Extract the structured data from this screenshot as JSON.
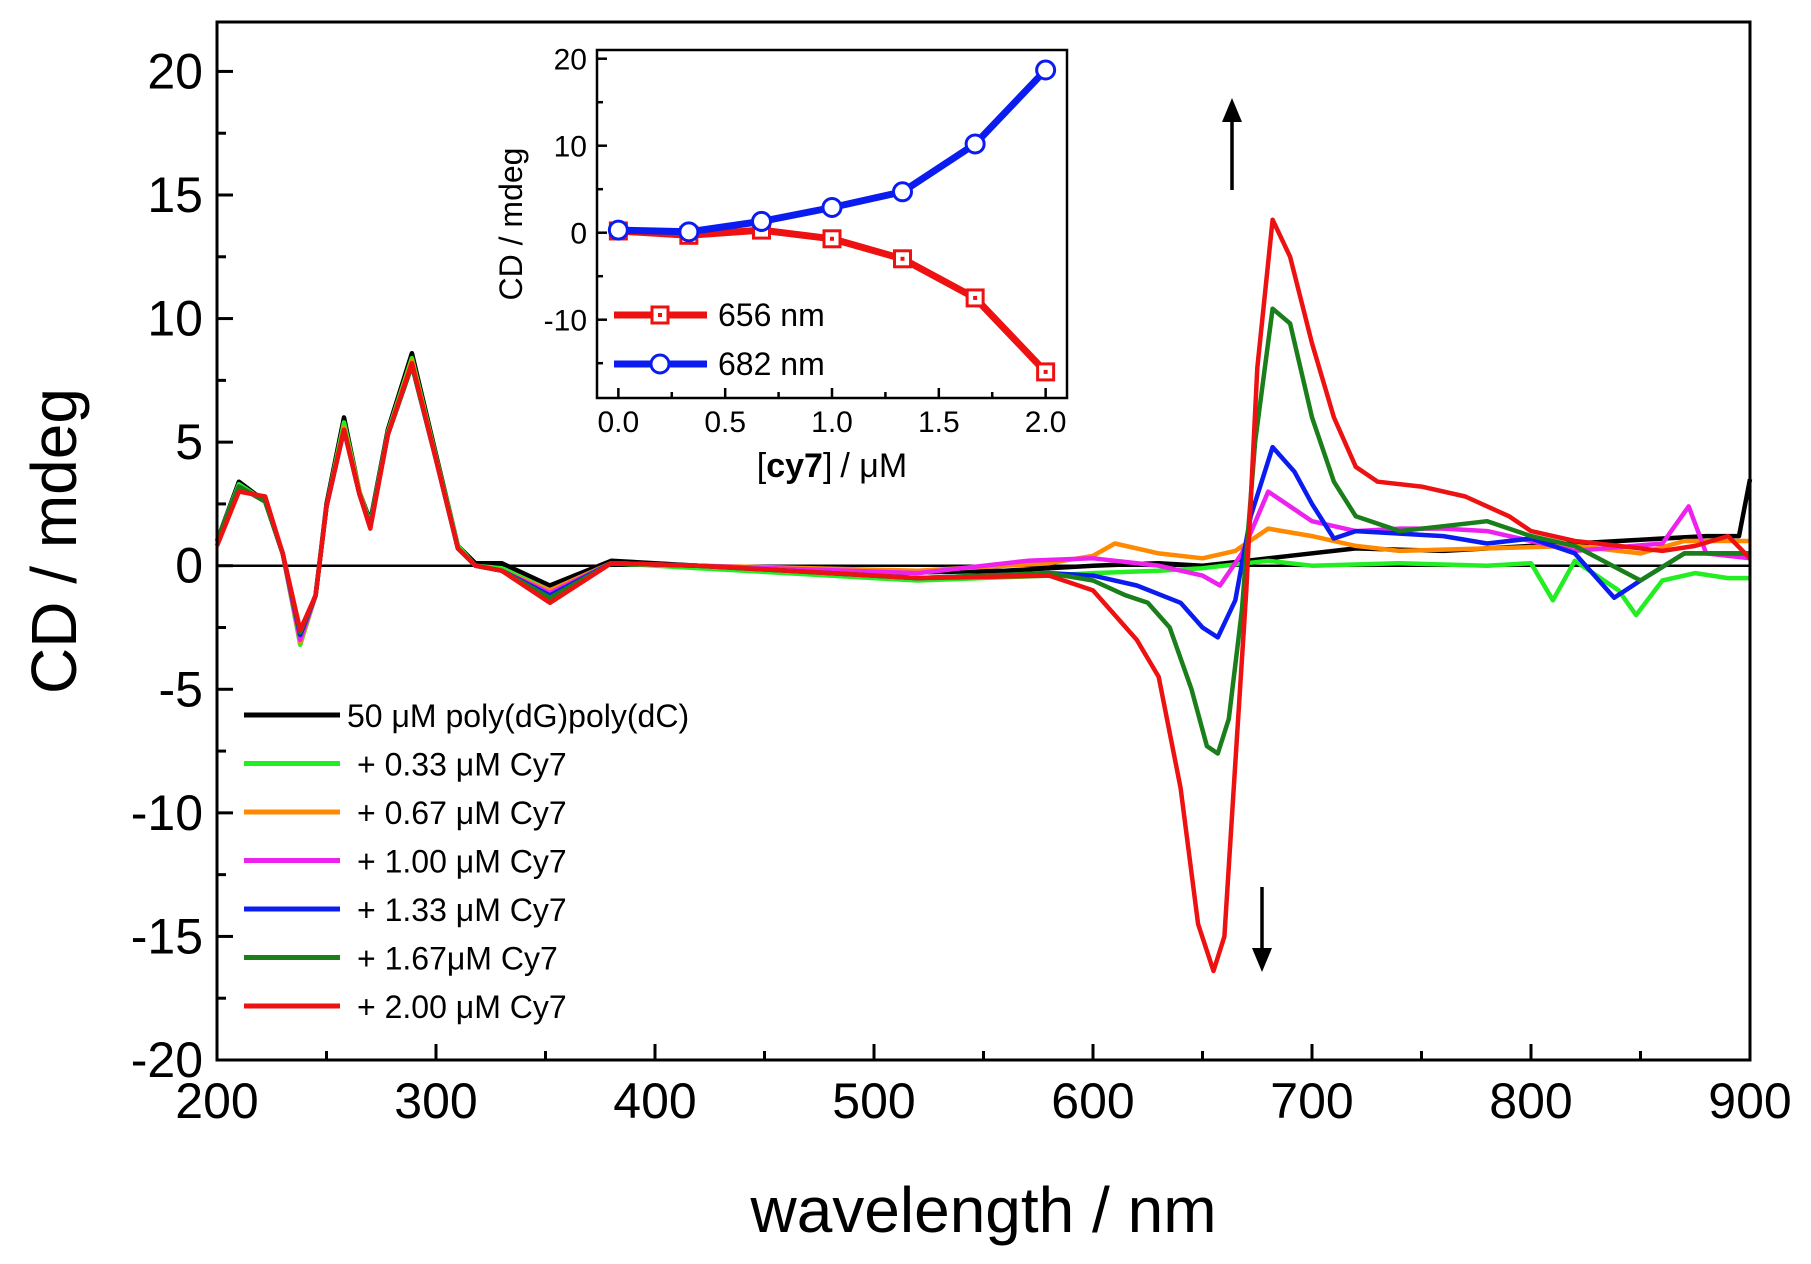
{
  "colors": {
    "axis": "#000000",
    "black": "#000000",
    "green": "#22ee22",
    "orange": "#ff8a00",
    "magenta": "#ee22ee",
    "blue": "#0b1cf0",
    "darkgreen": "#1a7f1a",
    "red": "#ee1111"
  },
  "chart_data": [
    {
      "id": "main",
      "type": "line",
      "title": "",
      "xlabel": "wavelength / nm",
      "ylabel": "CD / mdeg",
      "xlim": [
        200,
        900
      ],
      "ylim": [
        -20,
        22
      ],
      "xticks": [
        200,
        300,
        400,
        500,
        600,
        700,
        800,
        900
      ],
      "xtick_labels": [
        "200",
        "300",
        "400",
        "500",
        "600",
        "700",
        "800",
        "900"
      ],
      "yticks": [
        -20,
        -15,
        -10,
        -5,
        0,
        5,
        10,
        15,
        20
      ],
      "ytick_labels": [
        "-20",
        "-15",
        "-10",
        "-5",
        "0",
        "5",
        "10",
        "15",
        "20"
      ],
      "zero_line": true,
      "legend_position": "bottom-left",
      "series": [
        {
          "name": "50 μM poly(dG)poly(dC)",
          "color_key": "black",
          "x": [
            200,
            210,
            222,
            230,
            238,
            245,
            250,
            258,
            265,
            270,
            278,
            289,
            300,
            310,
            318,
            330,
            352,
            380,
            420,
            500,
            560,
            600,
            630,
            650,
            670,
            690,
            720,
            760,
            800,
            840,
            880,
            895,
            900
          ],
          "y": [
            1.0,
            3.4,
            2.6,
            0.5,
            -3.0,
            -1.2,
            2.5,
            6.0,
            3.0,
            1.8,
            5.5,
            8.6,
            4.5,
            0.8,
            0.1,
            0.1,
            -0.8,
            0.2,
            0.0,
            -0.3,
            -0.2,
            0.0,
            0.1,
            0.0,
            0.2,
            0.4,
            0.7,
            0.6,
            0.8,
            1.0,
            1.2,
            1.2,
            3.5
          ]
        },
        {
          "name": "+ 0.33 μM Cy7",
          "color_key": "green",
          "x": [
            200,
            210,
            222,
            230,
            238,
            245,
            250,
            258,
            265,
            270,
            278,
            289,
            300,
            310,
            318,
            330,
            352,
            380,
            420,
            520,
            580,
            600,
            630,
            650,
            670,
            680,
            700,
            740,
            780,
            800,
            810,
            820,
            840,
            848,
            860,
            875,
            890,
            900
          ],
          "y": [
            1.0,
            3.3,
            2.6,
            0.5,
            -3.2,
            -1.2,
            2.4,
            5.8,
            3.0,
            1.7,
            5.4,
            8.4,
            4.4,
            0.8,
            0.0,
            -0.1,
            -1.0,
            0.1,
            -0.1,
            -0.6,
            -0.4,
            -0.3,
            -0.2,
            -0.1,
            0.1,
            0.2,
            0.0,
            0.1,
            0.0,
            0.1,
            -1.4,
            0.2,
            -1.0,
            -2.0,
            -0.6,
            -0.3,
            -0.5,
            -0.5
          ]
        },
        {
          "name": "+ 0.67 μM Cy7",
          "color_key": "orange",
          "x": [
            200,
            210,
            222,
            230,
            238,
            245,
            250,
            258,
            265,
            270,
            278,
            289,
            300,
            310,
            318,
            330,
            352,
            380,
            420,
            520,
            580,
            600,
            610,
            630,
            650,
            665,
            680,
            700,
            720,
            740,
            780,
            820,
            850,
            870,
            900
          ],
          "y": [
            1.0,
            3.2,
            2.6,
            0.5,
            -3.1,
            -1.2,
            2.4,
            5.6,
            3.0,
            1.6,
            5.3,
            8.3,
            4.3,
            0.7,
            0.0,
            -0.2,
            -1.0,
            0.1,
            0.0,
            -0.2,
            0.1,
            0.4,
            0.9,
            0.5,
            0.3,
            0.6,
            1.5,
            1.2,
            0.8,
            0.6,
            0.7,
            0.8,
            0.5,
            1.0,
            1.0
          ]
        },
        {
          "name": "+ 1.00 μM Cy7",
          "color_key": "magenta",
          "x": [
            200,
            210,
            222,
            230,
            238,
            245,
            250,
            258,
            265,
            270,
            278,
            289,
            300,
            310,
            318,
            330,
            352,
            380,
            420,
            520,
            570,
            600,
            630,
            650,
            658,
            668,
            680,
            690,
            700,
            720,
            740,
            760,
            780,
            820,
            860,
            872,
            880,
            900
          ],
          "y": [
            1.0,
            3.2,
            2.6,
            0.5,
            -3.0,
            -1.2,
            2.4,
            5.5,
            2.9,
            1.6,
            5.3,
            8.2,
            4.3,
            0.7,
            0.0,
            -0.2,
            -1.1,
            0.1,
            0.0,
            -0.3,
            0.2,
            0.3,
            0.0,
            -0.4,
            -0.8,
            0.5,
            3.0,
            2.4,
            1.8,
            1.4,
            1.5,
            1.5,
            1.4,
            0.6,
            0.9,
            2.4,
            0.5,
            0.3
          ]
        },
        {
          "name": "+ 1.33 μM Cy7",
          "color_key": "blue",
          "x": [
            200,
            210,
            222,
            230,
            238,
            245,
            250,
            258,
            265,
            270,
            278,
            289,
            300,
            310,
            318,
            330,
            352,
            380,
            420,
            520,
            580,
            600,
            620,
            640,
            650,
            657,
            665,
            672,
            682,
            692,
            700,
            710,
            720,
            740,
            760,
            780,
            800,
            820,
            838,
            850,
            870,
            900
          ],
          "y": [
            1.0,
            3.2,
            2.6,
            0.5,
            -2.8,
            -1.2,
            2.4,
            5.5,
            2.9,
            1.6,
            5.3,
            8.1,
            4.3,
            0.7,
            0.0,
            -0.2,
            -1.2,
            0.1,
            0.0,
            -0.5,
            -0.3,
            -0.4,
            -0.8,
            -1.5,
            -2.5,
            -2.9,
            -1.4,
            2.0,
            4.8,
            3.8,
            2.5,
            1.1,
            1.4,
            1.3,
            1.2,
            0.9,
            1.1,
            0.5,
            -1.3,
            -0.6,
            0.5,
            0.5
          ]
        },
        {
          "name": "+ 1.67μM Cy7",
          "color_key": "darkgreen",
          "x": [
            200,
            210,
            222,
            230,
            238,
            245,
            250,
            258,
            265,
            270,
            278,
            289,
            300,
            310,
            318,
            330,
            352,
            380,
            420,
            520,
            580,
            600,
            615,
            625,
            635,
            645,
            652,
            657,
            662,
            668,
            674,
            682,
            690,
            700,
            710,
            720,
            740,
            760,
            780,
            800,
            820,
            850,
            870,
            900
          ],
          "y": [
            1.0,
            3.2,
            2.6,
            0.5,
            -2.7,
            -1.2,
            2.4,
            5.5,
            2.9,
            1.6,
            5.3,
            8.1,
            4.3,
            0.7,
            0.0,
            -0.2,
            -1.3,
            0.1,
            0.0,
            -0.5,
            -0.3,
            -0.6,
            -1.2,
            -1.5,
            -2.5,
            -5.0,
            -7.3,
            -7.6,
            -6.2,
            -1.8,
            5.0,
            10.4,
            9.8,
            6.0,
            3.4,
            2.0,
            1.4,
            1.6,
            1.8,
            1.2,
            0.8,
            -0.6,
            0.5,
            0.5
          ]
        },
        {
          "name": "+ 2.00 μM Cy7",
          "color_key": "red",
          "x": [
            200,
            210,
            222,
            230,
            238,
            245,
            250,
            258,
            265,
            270,
            278,
            289,
            300,
            310,
            318,
            330,
            352,
            380,
            420,
            520,
            580,
            600,
            610,
            620,
            630,
            640,
            648,
            655,
            660,
            665,
            670,
            675,
            682,
            690,
            700,
            710,
            720,
            730,
            750,
            770,
            790,
            800,
            820,
            840,
            860,
            875,
            890,
            900
          ],
          "y": [
            0.8,
            3.0,
            2.8,
            0.5,
            -2.6,
            -1.2,
            2.4,
            5.5,
            2.9,
            1.5,
            5.3,
            8.2,
            4.3,
            0.7,
            0.0,
            -0.2,
            -1.5,
            0.1,
            0.0,
            -0.5,
            -0.4,
            -1.0,
            -2.0,
            -3.0,
            -4.5,
            -9.0,
            -14.5,
            -16.4,
            -15.0,
            -8.0,
            -1.0,
            8.0,
            14.0,
            12.5,
            9.0,
            6.0,
            4.0,
            3.4,
            3.2,
            2.8,
            2.0,
            1.4,
            1.0,
            0.8,
            0.6,
            0.8,
            1.2,
            0.3
          ]
        }
      ],
      "annotations": [
        "up-arrow",
        "down-arrow"
      ]
    },
    {
      "id": "inset",
      "type": "line",
      "title": "",
      "xlabel_bold": "cy7",
      "xlabel_rest": "/ μM",
      "xlabel_open": "[",
      "xlabel_close": "]",
      "ylabel": "CD / mdeg",
      "xlim": [
        -0.1,
        2.1
      ],
      "ylim": [
        -19,
        21
      ],
      "xticks": [
        0.0,
        0.5,
        1.0,
        1.5,
        2.0
      ],
      "xtick_labels": [
        "0.0",
        "0.5",
        "1.0",
        "1.5",
        "2.0"
      ],
      "yticks": [
        -10,
        0,
        10,
        20
      ],
      "ytick_labels": [
        "-10",
        "0",
        "10",
        "20"
      ],
      "legend_position": "bottom-left",
      "series": [
        {
          "name": "656 nm",
          "color_key": "red",
          "marker": "square",
          "x": [
            0.0,
            0.33,
            0.67,
            1.0,
            1.33,
            1.67,
            2.0
          ],
          "y": [
            0.2,
            -0.3,
            0.3,
            -0.7,
            -3.0,
            -7.5,
            -16.0
          ]
        },
        {
          "name": "682 nm",
          "color_key": "blue",
          "marker": "circle",
          "x": [
            0.0,
            0.33,
            0.67,
            1.0,
            1.33,
            1.67,
            2.0
          ],
          "y": [
            0.3,
            0.1,
            1.3,
            2.9,
            4.7,
            10.2,
            18.7
          ]
        }
      ]
    }
  ]
}
